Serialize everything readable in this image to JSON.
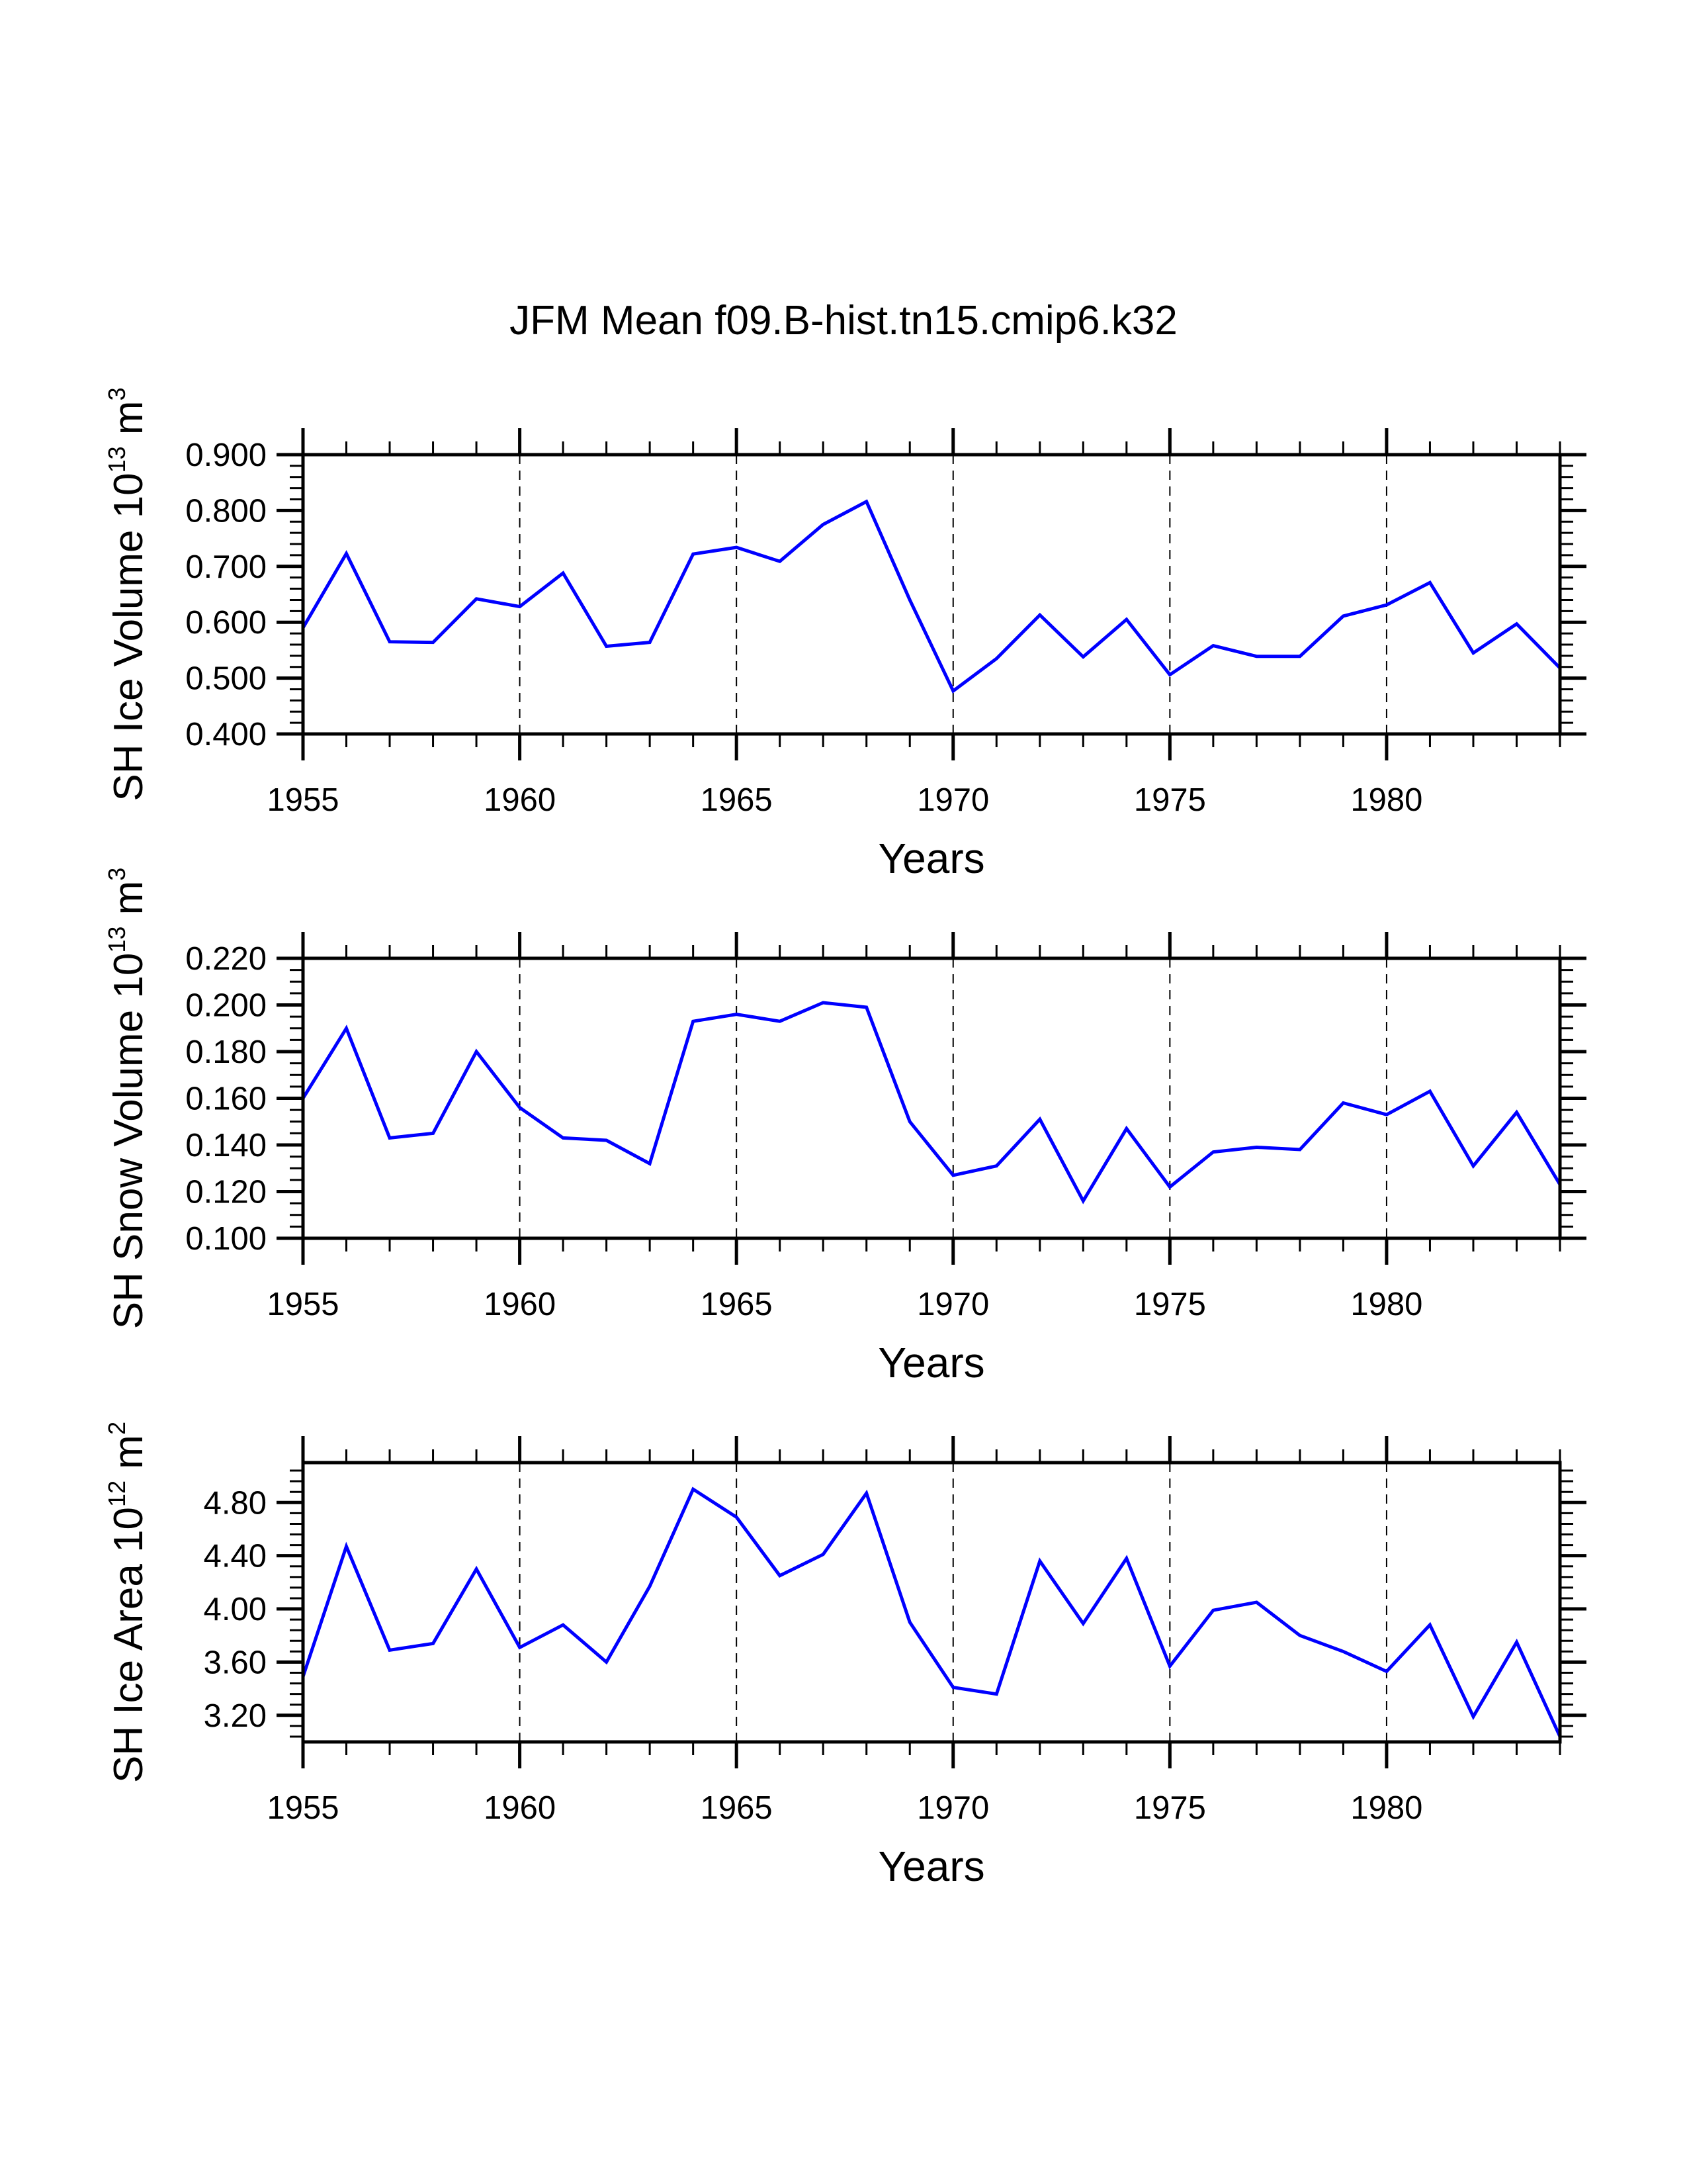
{
  "chart_data": [
    {
      "type": "line",
      "title": "JFM Mean f09.B-hist.tn15.cmip6.k32",
      "xlabel": "Years",
      "ylabel": {
        "text": "SH Ice Volume 10",
        "exp": "13",
        "unit": " m",
        "unit_exp": "3"
      },
      "xlim": [
        1955,
        1984
      ],
      "ylim": [
        0.4,
        0.9
      ],
      "x_ticks": [
        1955,
        1960,
        1965,
        1970,
        1975,
        1980
      ],
      "x_tick_labels": [
        "1955",
        "1960",
        "1965",
        "1970",
        "1975",
        "1980"
      ],
      "x_minor_step": 1,
      "y_ticks": [
        0.4,
        0.5,
        0.6,
        0.7,
        0.8,
        0.9
      ],
      "y_tick_labels": [
        "0.400",
        "0.500",
        "0.600",
        "0.700",
        "0.800",
        "0.900"
      ],
      "y_minor_step": 0.02,
      "grid": "vertical dashed at major x ticks",
      "series": [
        {
          "name": "SH Ice Volume",
          "color": "#0000ff",
          "x": [
            1955,
            1956,
            1957,
            1958,
            1959,
            1960,
            1961,
            1962,
            1963,
            1964,
            1965,
            1966,
            1967,
            1968,
            1969,
            1970,
            1971,
            1972,
            1973,
            1974,
            1975,
            1976,
            1977,
            1978,
            1979,
            1980,
            1981,
            1982,
            1983,
            1984
          ],
          "values": [
            0.59,
            0.723,
            0.565,
            0.564,
            0.642,
            0.628,
            0.688,
            0.557,
            0.564,
            0.722,
            0.734,
            0.709,
            0.775,
            0.816,
            0.64,
            0.477,
            0.535,
            0.613,
            0.538,
            0.605,
            0.506,
            0.558,
            0.539,
            0.539,
            0.611,
            0.631,
            0.671,
            0.545,
            0.597,
            0.518
          ]
        }
      ]
    },
    {
      "type": "line",
      "title": "",
      "xlabel": "Years",
      "ylabel": {
        "text": "SH Snow Volume 10",
        "exp": "13",
        "unit": " m",
        "unit_exp": "3"
      },
      "xlim": [
        1955,
        1984
      ],
      "ylim": [
        0.1,
        0.22
      ],
      "x_ticks": [
        1955,
        1960,
        1965,
        1970,
        1975,
        1980
      ],
      "x_tick_labels": [
        "1955",
        "1960",
        "1965",
        "1970",
        "1975",
        "1980"
      ],
      "x_minor_step": 1,
      "y_ticks": [
        0.1,
        0.12,
        0.14,
        0.16,
        0.18,
        0.2,
        0.22
      ],
      "y_tick_labels": [
        "0.100",
        "0.120",
        "0.140",
        "0.160",
        "0.180",
        "0.200",
        "0.220"
      ],
      "y_minor_step": 0.005,
      "grid": "vertical dashed at major x ticks",
      "series": [
        {
          "name": "SH Snow Volume",
          "color": "#0000ff",
          "x": [
            1955,
            1956,
            1957,
            1958,
            1959,
            1960,
            1961,
            1962,
            1963,
            1964,
            1965,
            1966,
            1967,
            1968,
            1969,
            1970,
            1971,
            1972,
            1973,
            1974,
            1975,
            1976,
            1977,
            1978,
            1979,
            1980,
            1981,
            1982,
            1983,
            1984
          ],
          "values": [
            0.16,
            0.19,
            0.143,
            0.145,
            0.18,
            0.156,
            0.143,
            0.142,
            0.132,
            0.193,
            0.196,
            0.193,
            0.201,
            0.199,
            0.15,
            0.127,
            0.131,
            0.151,
            0.116,
            0.147,
            0.122,
            0.137,
            0.139,
            0.138,
            0.158,
            0.153,
            0.163,
            0.131,
            0.154,
            0.123
          ]
        }
      ]
    },
    {
      "type": "line",
      "title": "",
      "xlabel": "Years",
      "ylabel": {
        "text": "SH Ice Area 10",
        "exp": "12",
        "unit": " m",
        "unit_exp": "2"
      },
      "xlim": [
        1955,
        1984
      ],
      "ylim": [
        3.0,
        5.1
      ],
      "x_ticks": [
        1955,
        1960,
        1965,
        1970,
        1975,
        1980
      ],
      "x_tick_labels": [
        "1955",
        "1960",
        "1965",
        "1970",
        "1975",
        "1980"
      ],
      "x_minor_step": 1,
      "y_ticks": [
        3.2,
        3.6,
        4.0,
        4.4,
        4.8
      ],
      "y_tick_labels": [
        "3.20",
        "3.60",
        "4.00",
        "4.40",
        "4.80"
      ],
      "y_minor_step": 0.08,
      "grid": "vertical dashed at major x ticks",
      "series": [
        {
          "name": "SH Ice Area",
          "color": "#0000ff",
          "x": [
            1955,
            1956,
            1957,
            1958,
            1959,
            1960,
            1961,
            1962,
            1963,
            1964,
            1965,
            1966,
            1967,
            1968,
            1969,
            1970,
            1971,
            1972,
            1973,
            1974,
            1975,
            1976,
            1977,
            1978,
            1979,
            1980,
            1981,
            1982,
            1983,
            1984
          ],
          "values": [
            3.49,
            4.47,
            3.69,
            3.74,
            4.3,
            3.71,
            3.88,
            3.6,
            4.17,
            4.9,
            4.69,
            4.25,
            4.41,
            4.87,
            3.9,
            3.41,
            3.36,
            4.36,
            3.89,
            4.38,
            3.57,
            3.99,
            4.05,
            3.8,
            3.68,
            3.53,
            3.88,
            3.19,
            3.75,
            3.04
          ]
        }
      ]
    }
  ]
}
